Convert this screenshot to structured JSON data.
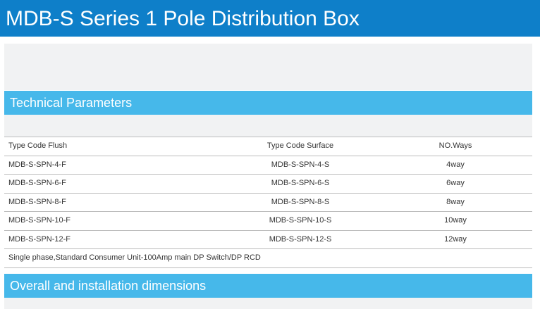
{
  "page_title": "MDB-S Series 1 Pole Distribution Box",
  "sections": {
    "technical": "Technical Parameters",
    "dimensions": "Overall and installation dimensions"
  },
  "table": {
    "headers": [
      "Type Code Flush",
      "Type Code Surface",
      "NO.Ways"
    ],
    "rows": [
      [
        "MDB-S-SPN-4-F",
        "MDB-S-SPN-4-S",
        "4way"
      ],
      [
        "MDB-S-SPN-6-F",
        "MDB-S-SPN-6-S",
        "6way"
      ],
      [
        "MDB-S-SPN-8-F",
        "MDB-S-SPN-8-S",
        "8way"
      ],
      [
        "MDB-S-SPN-10-F",
        "MDB-S-SPN-10-S",
        "10way"
      ],
      [
        "MDB-S-SPN-12-F",
        "MDB-S-SPN-12-S",
        "12way"
      ]
    ],
    "note": "Single phase,Standard Consumer Unit-100Amp main DP Switch/DP RCD"
  },
  "colors": {
    "title_bar": "#0e7fc9",
    "section_bar": "#46b8ea",
    "panel_gray": "#f1f2f3"
  }
}
